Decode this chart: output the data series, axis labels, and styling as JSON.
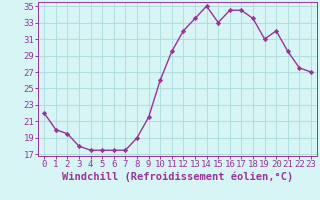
{
  "x": [
    0,
    1,
    2,
    3,
    4,
    5,
    6,
    7,
    8,
    9,
    10,
    11,
    12,
    13,
    14,
    15,
    16,
    17,
    18,
    19,
    20,
    21,
    22,
    23
  ],
  "y": [
    22,
    20,
    19.5,
    18,
    17.5,
    17.5,
    17.5,
    17.5,
    19,
    21.5,
    26,
    29.5,
    32,
    33.5,
    35,
    33,
    34.5,
    34.5,
    33.5,
    31,
    32,
    29.5,
    27.5,
    27
  ],
  "ylim": [
    17,
    35
  ],
  "yticks": [
    17,
    19,
    21,
    23,
    25,
    27,
    29,
    31,
    33,
    35
  ],
  "xticks": [
    0,
    1,
    2,
    3,
    4,
    5,
    6,
    7,
    8,
    9,
    10,
    11,
    12,
    13,
    14,
    15,
    16,
    17,
    18,
    19,
    20,
    21,
    22,
    23
  ],
  "xlabel": "Windchill (Refroidissement éolien,°C)",
  "line_color": "#993399",
  "marker": "D",
  "marker_size": 2.2,
  "line_width": 1.0,
  "bg_color": "#d8f5f5",
  "grid_color": "#b0dede",
  "tick_label_fontsize": 6.5,
  "xlabel_fontsize": 7.5
}
